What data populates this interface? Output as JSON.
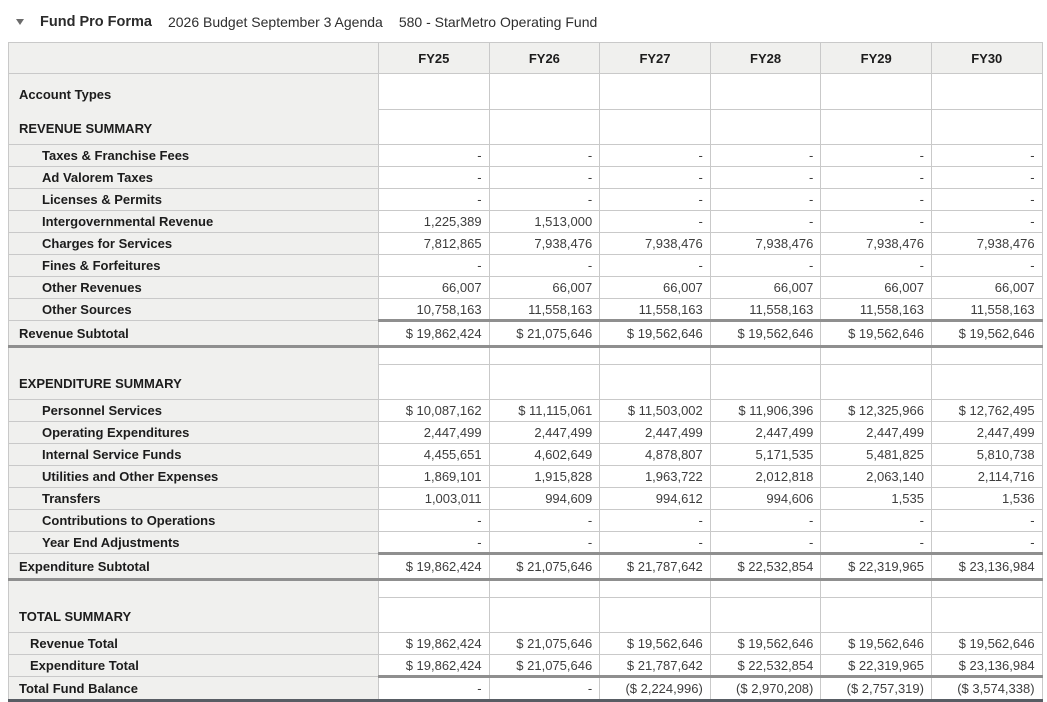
{
  "title_bar": {
    "collapse_icon": "triangle-down",
    "title": "Fund Pro Forma",
    "budget_name": "2026 Budget September 3 Agenda",
    "fund_name": "580 - StarMetro Operating Fund"
  },
  "colors": {
    "header_background": "#f0f0ee",
    "grid_border": "#c9c9c9",
    "subtotal_rule": "#8f8f8f",
    "table_bottom_rule": "#585d64"
  },
  "table": {
    "columns": [
      "FY25",
      "FY26",
      "FY27",
      "FY28",
      "FY29",
      "FY30"
    ],
    "rows": [
      {
        "type": "sectiontop",
        "merge": "below",
        "indent": 0,
        "label": "Account Types",
        "values": [
          "",
          "",
          "",
          "",
          "",
          ""
        ]
      },
      {
        "type": "section",
        "merge": "above",
        "indent": 0,
        "label": "REVENUE SUMMARY",
        "values": [
          "",
          "",
          "",
          "",
          "",
          ""
        ]
      },
      {
        "type": "data",
        "indent": 2,
        "label": "Taxes & Franchise Fees",
        "values": [
          "-",
          "-",
          "-",
          "-",
          "-",
          "-"
        ]
      },
      {
        "type": "data",
        "indent": 2,
        "label": "Ad Valorem Taxes",
        "values": [
          "-",
          "-",
          "-",
          "-",
          "-",
          "-"
        ]
      },
      {
        "type": "data",
        "indent": 2,
        "label": "Licenses & Permits",
        "values": [
          "-",
          "-",
          "-",
          "-",
          "-",
          "-"
        ]
      },
      {
        "type": "data",
        "indent": 2,
        "label": "Intergovernmental Revenue",
        "values": [
          "1,225,389",
          "1,513,000",
          "-",
          "-",
          "-",
          "-"
        ]
      },
      {
        "type": "data",
        "indent": 2,
        "label": "Charges for Services",
        "values": [
          "7,812,865",
          "7,938,476",
          "7,938,476",
          "7,938,476",
          "7,938,476",
          "7,938,476"
        ]
      },
      {
        "type": "data",
        "indent": 2,
        "label": "Fines & Forfeitures",
        "values": [
          "-",
          "-",
          "-",
          "-",
          "-",
          "-"
        ]
      },
      {
        "type": "data",
        "indent": 2,
        "label": "Other Revenues",
        "values": [
          "66,007",
          "66,007",
          "66,007",
          "66,007",
          "66,007",
          "66,007"
        ]
      },
      {
        "type": "data",
        "indent": 2,
        "label": "Other Sources",
        "values": [
          "10,758,163",
          "11,558,163",
          "11,558,163",
          "11,558,163",
          "11,558,163",
          "11,558,163"
        ]
      },
      {
        "type": "subtotal",
        "indent": 0,
        "label": "Revenue Subtotal",
        "values": [
          "$ 19,862,424",
          "$ 21,075,646",
          "$ 19,562,646",
          "$ 19,562,646",
          "$ 19,562,646",
          "$ 19,562,646"
        ]
      },
      {
        "type": "gap",
        "merge": "below",
        "indent": 0,
        "label": "",
        "values": [
          "",
          "",
          "",
          "",
          "",
          ""
        ]
      },
      {
        "type": "section",
        "merge": "above",
        "indent": 0,
        "label": "EXPENDITURE SUMMARY",
        "values": [
          "",
          "",
          "",
          "",
          "",
          ""
        ]
      },
      {
        "type": "data",
        "indent": 2,
        "label": "Personnel Services",
        "values": [
          "$ 10,087,162",
          "$ 11,115,061",
          "$ 11,503,002",
          "$ 11,906,396",
          "$ 12,325,966",
          "$ 12,762,495"
        ]
      },
      {
        "type": "data",
        "indent": 2,
        "label": "Operating Expenditures",
        "values": [
          "2,447,499",
          "2,447,499",
          "2,447,499",
          "2,447,499",
          "2,447,499",
          "2,447,499"
        ]
      },
      {
        "type": "data",
        "indent": 2,
        "label": "Internal Service Funds",
        "values": [
          "4,455,651",
          "4,602,649",
          "4,878,807",
          "5,171,535",
          "5,481,825",
          "5,810,738"
        ]
      },
      {
        "type": "data",
        "indent": 2,
        "label": "Utilities and Other Expenses",
        "values": [
          "1,869,101",
          "1,915,828",
          "1,963,722",
          "2,012,818",
          "2,063,140",
          "2,114,716"
        ]
      },
      {
        "type": "data",
        "indent": 2,
        "label": "Transfers",
        "values": [
          "1,003,011",
          "994,609",
          "994,612",
          "994,606",
          "1,535",
          "1,536"
        ]
      },
      {
        "type": "data",
        "indent": 2,
        "label": "Contributions to Operations",
        "values": [
          "-",
          "-",
          "-",
          "-",
          "-",
          "-"
        ]
      },
      {
        "type": "data",
        "indent": 2,
        "label": "Year End Adjustments",
        "values": [
          "-",
          "-",
          "-",
          "-",
          "-",
          "-"
        ]
      },
      {
        "type": "subtotal",
        "indent": 0,
        "label": "Expenditure Subtotal",
        "values": [
          "$ 19,862,424",
          "$ 21,075,646",
          "$ 21,787,642",
          "$ 22,532,854",
          "$ 22,319,965",
          "$ 23,136,984"
        ]
      },
      {
        "type": "gap",
        "merge": "below",
        "indent": 0,
        "label": "",
        "values": [
          "",
          "",
          "",
          "",
          "",
          ""
        ]
      },
      {
        "type": "section",
        "merge": "above",
        "indent": 0,
        "label": "TOTAL SUMMARY",
        "values": [
          "",
          "",
          "",
          "",
          "",
          ""
        ]
      },
      {
        "type": "total",
        "indent": 1,
        "label": "Revenue Total",
        "values": [
          "$ 19,862,424",
          "$ 21,075,646",
          "$ 19,562,646",
          "$ 19,562,646",
          "$ 19,562,646",
          "$ 19,562,646"
        ]
      },
      {
        "type": "total",
        "indent": 1,
        "label": "Expenditure Total",
        "values": [
          "$ 19,862,424",
          "$ 21,075,646",
          "$ 21,787,642",
          "$ 22,532,854",
          "$ 22,319,965",
          "$ 23,136,984"
        ]
      },
      {
        "type": "grandtotal",
        "indent": 0,
        "label": "Total Fund Balance",
        "values": [
          "-",
          "-",
          "($ 2,224,996)",
          "($ 2,970,208)",
          "($ 2,757,319)",
          "($ 3,574,338)"
        ]
      }
    ]
  }
}
